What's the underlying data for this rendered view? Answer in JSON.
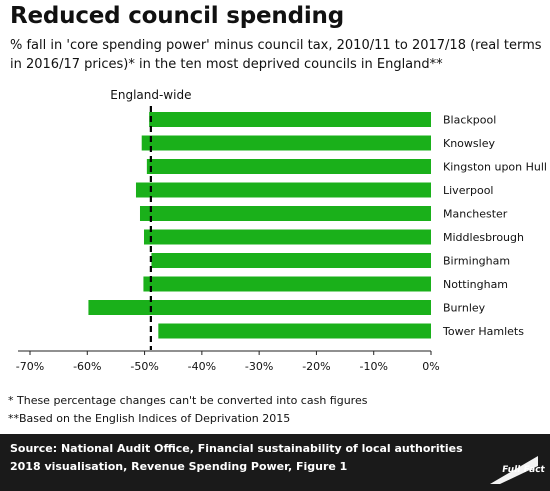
{
  "title": "Reduced council spending",
  "subtitle": "% fall in 'core spending power' minus council tax, 2010/11 to 2017/18 (real terms in 2016/17 prices)* in the ten most deprived councils in England**",
  "chart_data": {
    "type": "bar",
    "orientation": "horizontal",
    "categories": [
      "Blackpool",
      "Knowsley",
      "Kingston upon Hull",
      "Liverpool",
      "Manchester",
      "Middlesbrough",
      "Birmingham",
      "Nottingham",
      "Burnley",
      "Tower Hamlets"
    ],
    "values": [
      -49.2,
      -50.5,
      -49.6,
      -51.5,
      -50.8,
      -50.1,
      -48.8,
      -50.2,
      -59.8,
      -47.6
    ],
    "reference_line": {
      "label": "England-wide",
      "value": -48.9
    },
    "xlim": [
      -70,
      0
    ],
    "xticks": [
      "-70%",
      "-60%",
      "-50%",
      "-40%",
      "-30%",
      "-20%",
      "-10%",
      "0%"
    ],
    "xtick_values": [
      -70,
      -60,
      -50,
      -40,
      -30,
      -20,
      -10,
      0
    ],
    "bar_color": "#1ab01a",
    "ref_color": "#000000",
    "grid": false
  },
  "notes": [
    "* These percentage changes can't be converted into cash figures",
    "**Based on the English Indices of Deprivation 2015"
  ],
  "source": {
    "label": "Source:",
    "text": " National Audit Office, Financial sustainability of local authorities 2018 visualisation, Revenue Spending Power, Figure 1"
  },
  "logo": {
    "text": "Full Fact"
  }
}
